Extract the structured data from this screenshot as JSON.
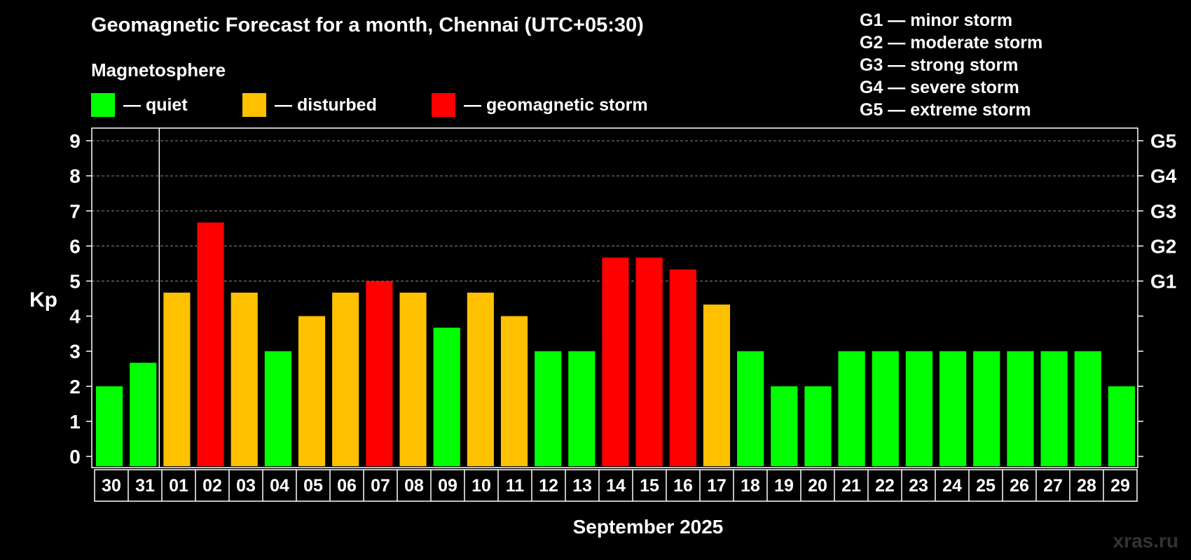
{
  "header": {
    "title": "Geomagnetic Forecast for a month, Chennai (UTC+05:30)",
    "magnetosphere_label": "Magnetosphere"
  },
  "legend": [
    {
      "label": "— quiet",
      "color": "#00ff00"
    },
    {
      "label": "— disturbed",
      "color": "#ffc000"
    },
    {
      "label": "— geomagnetic storm",
      "color": "#ff0000"
    }
  ],
  "storm_levels": [
    "G1 — minor storm",
    "G2 — moderate storm",
    "G3 — strong storm",
    "G4 — severe storm",
    "G5 — extreme storm"
  ],
  "watermark": "xras.ru",
  "chart_data": {
    "type": "bar",
    "title": "Geomagnetic Forecast for a month, Chennai (UTC+05:30)",
    "xlabel": "September 2025",
    "ylabel": "Kp",
    "ylim": [
      0,
      9
    ],
    "yticks": [
      "0",
      "1",
      "2",
      "3",
      "4",
      "5",
      "6",
      "7",
      "8",
      "9"
    ],
    "right_axis_ticks": [
      {
        "kp": 5,
        "label": "G1"
      },
      {
        "kp": 6,
        "label": "G2"
      },
      {
        "kp": 7,
        "label": "G3"
      },
      {
        "kp": 8,
        "label": "G4"
      },
      {
        "kp": 9,
        "label": "G5"
      }
    ],
    "grid": "dashed horizontal at Kp 5-9",
    "month_boundary_after_category": "31",
    "categories": [
      "30",
      "31",
      "01",
      "02",
      "03",
      "04",
      "05",
      "06",
      "07",
      "08",
      "09",
      "10",
      "11",
      "12",
      "13",
      "14",
      "15",
      "16",
      "17",
      "18",
      "19",
      "20",
      "21",
      "22",
      "23",
      "24",
      "25",
      "26",
      "27",
      "28",
      "29"
    ],
    "values": [
      2,
      2.67,
      4.67,
      6.67,
      4.67,
      3,
      4,
      4.67,
      5,
      4.67,
      3.67,
      4.67,
      4,
      3,
      3,
      5.67,
      5.67,
      5.33,
      4.33,
      3,
      2,
      2,
      3,
      3,
      3,
      3,
      3,
      3,
      3,
      3,
      2
    ],
    "status": [
      "quiet",
      "quiet",
      "disturbed",
      "storm",
      "disturbed",
      "quiet",
      "disturbed",
      "disturbed",
      "storm",
      "disturbed",
      "quiet",
      "disturbed",
      "disturbed",
      "quiet",
      "quiet",
      "storm",
      "storm",
      "storm",
      "disturbed",
      "quiet",
      "quiet",
      "quiet",
      "quiet",
      "quiet",
      "quiet",
      "quiet",
      "quiet",
      "quiet",
      "quiet",
      "quiet",
      "quiet"
    ],
    "status_colors": {
      "quiet": "#00ff00",
      "disturbed": "#ffc000",
      "storm": "#ff0000"
    }
  }
}
